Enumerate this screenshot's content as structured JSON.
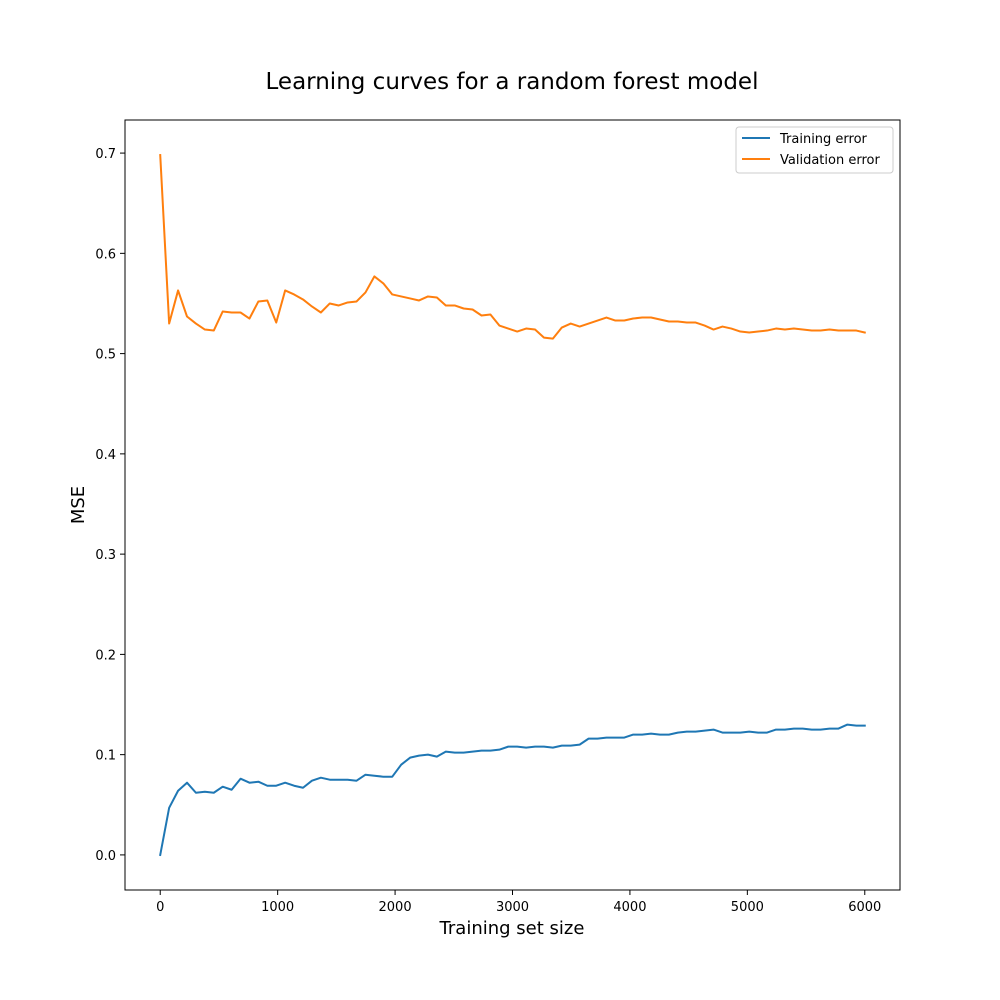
{
  "chart_data": {
    "type": "line",
    "title": "Learning curves for a random forest model",
    "xlabel": "Training set size",
    "ylabel": "MSE",
    "xlim": [
      -300,
      6300
    ],
    "ylim": [
      -0.035,
      0.733
    ],
    "xticks": [
      0,
      1000,
      2000,
      3000,
      4000,
      5000,
      6000
    ],
    "xtick_labels": [
      "0",
      "1000",
      "2000",
      "3000",
      "4000",
      "5000",
      "6000"
    ],
    "yticks": [
      0.0,
      0.1,
      0.2,
      0.3,
      0.4,
      0.5,
      0.6,
      0.7
    ],
    "ytick_labels": [
      "0.0",
      "0.1",
      "0.2",
      "0.3",
      "0.4",
      "0.5",
      "0.6",
      "0.7"
    ],
    "grid": false,
    "legend_position": "top-right",
    "x": [
      0,
      76,
      152,
      228,
      304,
      380,
      456,
      532,
      608,
      684,
      760,
      836,
      912,
      988,
      1064,
      1140,
      1216,
      1292,
      1368,
      1444,
      1520,
      1596,
      1672,
      1748,
      1824,
      1900,
      1976,
      2052,
      2128,
      2204,
      2280,
      2356,
      2432,
      2508,
      2584,
      2660,
      2736,
      2812,
      2888,
      2964,
      3040,
      3116,
      3192,
      3268,
      3344,
      3420,
      3496,
      3572,
      3648,
      3724,
      3800,
      3876,
      3952,
      4028,
      4104,
      4180,
      4256,
      4332,
      4408,
      4484,
      4560,
      4636,
      4712,
      4788,
      4864,
      4940,
      5016,
      5092,
      5168,
      5244,
      5320,
      5396,
      5472,
      5548,
      5624,
      5700,
      5776,
      5852,
      5928,
      6000
    ],
    "series": [
      {
        "name": "Training error",
        "color": "#1f77b4",
        "values": [
          0.0,
          0.047,
          0.064,
          0.072,
          0.062,
          0.063,
          0.062,
          0.068,
          0.065,
          0.076,
          0.072,
          0.073,
          0.069,
          0.069,
          0.072,
          0.069,
          0.067,
          0.074,
          0.077,
          0.075,
          0.075,
          0.075,
          0.074,
          0.08,
          0.079,
          0.078,
          0.078,
          0.09,
          0.097,
          0.099,
          0.1,
          0.098,
          0.103,
          0.102,
          0.102,
          0.103,
          0.104,
          0.104,
          0.105,
          0.108,
          0.108,
          0.107,
          0.108,
          0.108,
          0.107,
          0.109,
          0.109,
          0.11,
          0.116,
          0.116,
          0.117,
          0.117,
          0.117,
          0.12,
          0.12,
          0.121,
          0.12,
          0.12,
          0.122,
          0.123,
          0.123,
          0.124,
          0.125,
          0.122,
          0.122,
          0.122,
          0.123,
          0.122,
          0.122,
          0.125,
          0.125,
          0.126,
          0.126,
          0.125,
          0.125,
          0.126,
          0.126,
          0.13,
          0.129,
          0.129
        ]
      },
      {
        "name": "Validation error",
        "color": "#ff7f0e",
        "values": [
          0.698,
          0.53,
          0.563,
          0.537,
          0.53,
          0.524,
          0.523,
          0.542,
          0.541,
          0.541,
          0.535,
          0.552,
          0.553,
          0.531,
          0.563,
          0.559,
          0.554,
          0.547,
          0.541,
          0.55,
          0.548,
          0.551,
          0.552,
          0.561,
          0.577,
          0.57,
          0.559,
          0.557,
          0.555,
          0.553,
          0.557,
          0.556,
          0.548,
          0.548,
          0.545,
          0.544,
          0.538,
          0.539,
          0.528,
          0.525,
          0.522,
          0.525,
          0.524,
          0.516,
          0.515,
          0.526,
          0.53,
          0.527,
          0.53,
          0.533,
          0.536,
          0.533,
          0.533,
          0.535,
          0.536,
          0.536,
          0.534,
          0.532,
          0.532,
          0.531,
          0.531,
          0.528,
          0.524,
          0.527,
          0.525,
          0.522,
          0.521,
          0.522,
          0.523,
          0.525,
          0.524,
          0.525,
          0.524,
          0.523,
          0.523,
          0.524,
          0.523,
          0.523,
          0.523,
          0.521
        ]
      }
    ]
  }
}
